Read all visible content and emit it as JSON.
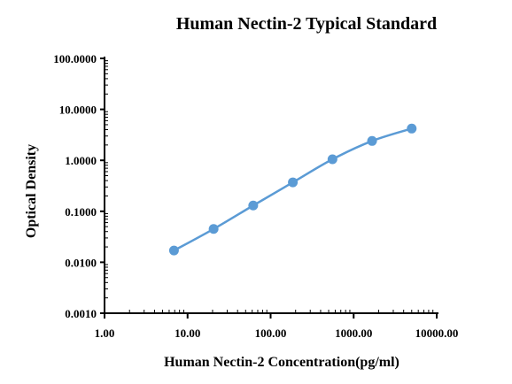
{
  "chart_data": {
    "type": "line",
    "title": "Human Nectin-2 Typical Standard",
    "xlabel": "Human Nectin-2 Concentration(pg/ml)",
    "ylabel": "Optical Density",
    "x_scale": "log",
    "y_scale": "log",
    "xlim": [
      1,
      10000
    ],
    "ylim": [
      0.001,
      100
    ],
    "x_ticks": [
      "1.00",
      "10.00",
      "100.00",
      "1000.00",
      "10000.00"
    ],
    "y_ticks": [
      "0.0010",
      "0.0100",
      "0.1000",
      "1.0000",
      "10.0000",
      "100.0000"
    ],
    "grid": false,
    "series": [
      {
        "x": [
          6.86,
          20.58,
          61.73,
          185.19,
          555.56,
          1666.67,
          5000
        ],
        "y": [
          0.017,
          0.045,
          0.13,
          0.37,
          1.05,
          2.4,
          4.2
        ],
        "color": "#5b9bd5"
      }
    ]
  }
}
